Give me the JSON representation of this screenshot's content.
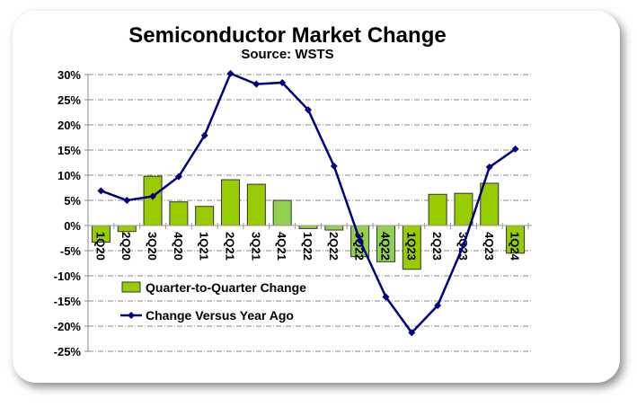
{
  "chart_data": {
    "type": "bar",
    "title": "Semiconductor Market Change",
    "subtitle": "Source: WSTS",
    "categories": [
      "1Q20",
      "2Q20",
      "3Q20",
      "4Q20",
      "1Q21",
      "2Q21",
      "3Q21",
      "4Q21",
      "1Q22",
      "2Q22",
      "3Q22",
      "4Q22",
      "1Q23",
      "2Q23",
      "3Q23",
      "4Q23",
      "1Q24"
    ],
    "series": [
      {
        "name": "Quarter-to-Quarter Change",
        "type": "bar",
        "color": "#99cc00",
        "values": [
          -3.3,
          -1.2,
          9.8,
          4.7,
          3.8,
          9.1,
          8.2,
          5.0,
          -0.6,
          -0.9,
          -6.2,
          -7.2,
          -8.7,
          6.2,
          6.4,
          8.4,
          -5.5
        ]
      },
      {
        "name": "Change Versus Year Ago",
        "type": "line",
        "color": "#000080",
        "values": [
          6.9,
          5.0,
          5.8,
          9.7,
          17.9,
          30.2,
          28.1,
          28.4,
          23.0,
          11.8,
          -3.0,
          -14.2,
          -21.3,
          -15.9,
          -3.9,
          11.6,
          15.2
        ]
      }
    ],
    "ylim": [
      -25,
      30
    ],
    "yticks": [
      "30%",
      "25%",
      "20%",
      "15%",
      "10%",
      "5%",
      "0%",
      "-5%",
      "-10%",
      "-15%",
      "-20%",
      "-25%"
    ],
    "grid": true,
    "legend": "bottom-left"
  }
}
